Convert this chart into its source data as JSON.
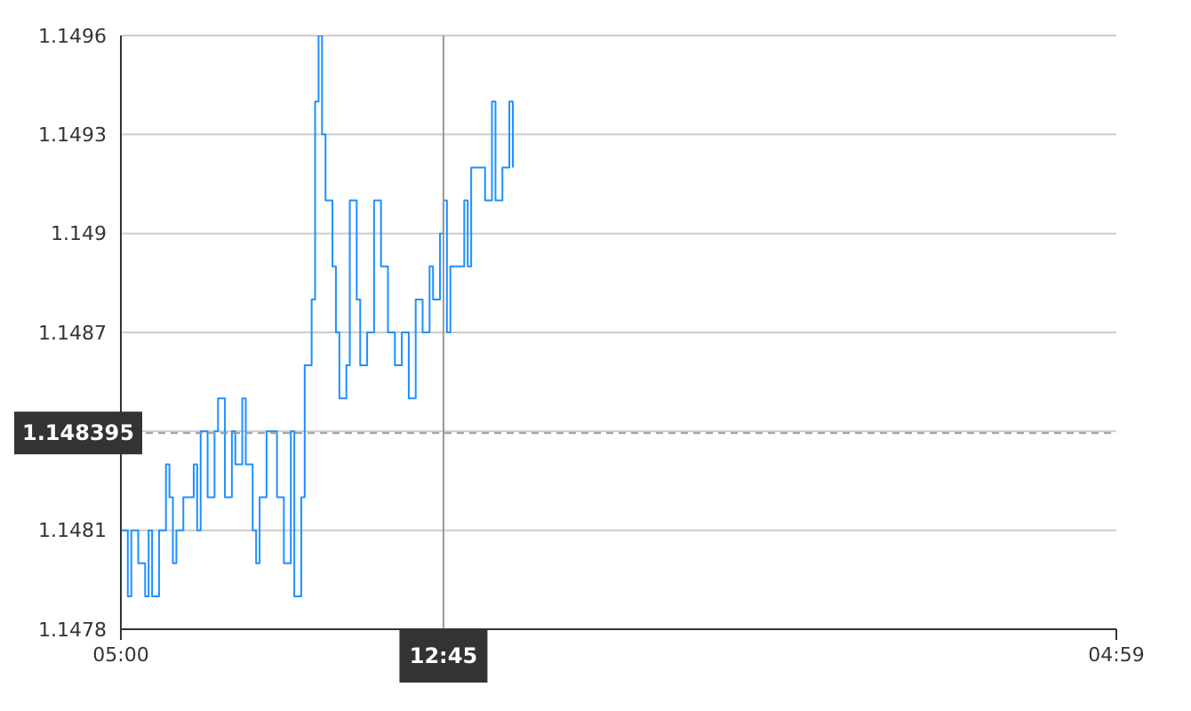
{
  "chart_data": {
    "type": "step",
    "categories": [
      "05:00",
      null,
      null,
      null,
      null,
      null,
      null,
      null,
      null,
      null,
      null,
      null,
      null,
      null,
      null,
      null,
      null,
      null,
      null,
      null,
      null,
      null,
      null,
      null,
      null,
      null,
      null,
      null,
      null,
      null,
      null,
      null,
      null,
      null,
      null,
      null,
      null,
      null,
      null,
      null,
      null,
      null,
      null,
      null,
      null,
      null,
      null,
      null,
      null,
      null,
      null,
      null,
      null,
      null,
      null,
      null,
      null,
      null,
      null,
      null,
      null,
      null,
      null,
      null,
      null,
      null,
      null,
      null,
      null,
      null,
      null,
      null,
      null,
      null,
      null,
      null,
      null,
      null,
      null,
      null,
      null,
      null,
      null,
      null,
      null,
      null,
      null,
      null,
      null,
      null,
      null,
      null,
      null,
      "12:45",
      null,
      null,
      null,
      null,
      null,
      null,
      null,
      null,
      null,
      null,
      null,
      null,
      null,
      null,
      null,
      null,
      null,
      null,
      null,
      null,
      null,
      null,
      null,
      null,
      null,
      null,
      null,
      null,
      null,
      null,
      null,
      null,
      null,
      null,
      null,
      null,
      null,
      null,
      null,
      null,
      null,
      null,
      null,
      null,
      null,
      null,
      null,
      null,
      null,
      null,
      null,
      null,
      null,
      null,
      null,
      null,
      null,
      null,
      null,
      null,
      null,
      null,
      null,
      null,
      null,
      null,
      null,
      null,
      null,
      null,
      null,
      null,
      null,
      null,
      null,
      null,
      null,
      null,
      null,
      null,
      null,
      null,
      null,
      null,
      null,
      null,
      null,
      null,
      null,
      null,
      null,
      null,
      null,
      null,
      null,
      null,
      null,
      null,
      null,
      null,
      null,
      null,
      null,
      null,
      null,
      null,
      null,
      null,
      null,
      null,
      null,
      null,
      null,
      null,
      null,
      null,
      null,
      null,
      null,
      null,
      null,
      null,
      null,
      null,
      null,
      null,
      null,
      null,
      null,
      null,
      null,
      null,
      null,
      null,
      null,
      null,
      null,
      null,
      null,
      null,
      null,
      null,
      null,
      null,
      null,
      null,
      null,
      null,
      null,
      null,
      null,
      null,
      null,
      null,
      null,
      null,
      null,
      null,
      null,
      null,
      null,
      null,
      null,
      null,
      null,
      null,
      null,
      null,
      null,
      null,
      null,
      null,
      null,
      null,
      null,
      null,
      null,
      null,
      null,
      null,
      null,
      null,
      null,
      null,
      null,
      null,
      null,
      null,
      null,
      null,
      null,
      null,
      null,
      "04:59"
    ],
    "series": [
      {
        "color": "#1e90ff",
        "values": [
          1.1481,
          1.1481,
          1.1479,
          1.1481,
          1.1481,
          1.148,
          1.148,
          1.1479,
          1.1481,
          1.1479,
          1.1479,
          1.1481,
          1.1481,
          1.1483,
          1.1482,
          1.148,
          1.1481,
          1.1481,
          1.1482,
          1.1482,
          1.1482,
          1.1483,
          1.1481,
          1.1484,
          1.1484,
          1.1482,
          1.1482,
          1.1484,
          1.1485,
          1.1485,
          1.1482,
          1.1482,
          1.1484,
          1.1483,
          1.1483,
          1.1485,
          1.1483,
          1.1483,
          1.1481,
          1.148,
          1.1482,
          1.1482,
          1.1484,
          1.1484,
          1.1484,
          1.1482,
          1.1482,
          1.148,
          1.148,
          1.1484,
          1.1479,
          1.1479,
          1.1482,
          1.1486,
          1.1486,
          1.1488,
          1.1494,
          1.1496,
          1.1493,
          1.1491,
          1.1491,
          1.1489,
          1.1487,
          1.1485,
          1.1485,
          1.1486,
          1.1491,
          1.1491,
          1.1488,
          1.1486,
          1.1486,
          1.1487,
          1.1487,
          1.1491,
          1.1491,
          1.1489,
          1.1489,
          1.1487,
          1.1487,
          1.1486,
          1.1486,
          1.1487,
          1.1487,
          1.1485,
          1.1485,
          1.1488,
          1.1488,
          1.1487,
          1.1487,
          1.1489,
          1.1488,
          1.1488,
          1.149,
          1.1491,
          1.1487,
          1.1489,
          1.1489,
          1.1489,
          1.1489,
          1.1491,
          1.1489,
          1.1492,
          1.1492,
          1.1492,
          1.1492,
          1.1491,
          1.1491,
          1.1494,
          1.1491,
          1.1491,
          1.1492,
          1.1492,
          1.1494,
          1.1492,
          null,
          null,
          null,
          null,
          null,
          null,
          null,
          null,
          null,
          null,
          null,
          null,
          null,
          null,
          null,
          null,
          null,
          null,
          null,
          null,
          null,
          null,
          null,
          null,
          null,
          null,
          null,
          null,
          null,
          null,
          null,
          null,
          null,
          null,
          null,
          null,
          null,
          null,
          null,
          null,
          null,
          null,
          null,
          null,
          null,
          null,
          null,
          null,
          null,
          null,
          null,
          null,
          null,
          null,
          null,
          null,
          null,
          null,
          null,
          null,
          null,
          null,
          null,
          null,
          null,
          null,
          null,
          null,
          null,
          null,
          null,
          null,
          null,
          null,
          null,
          null,
          null,
          null,
          null,
          null,
          null,
          null,
          null,
          null,
          null,
          null,
          null,
          null,
          null,
          null,
          null,
          null,
          null,
          null,
          null,
          null,
          null,
          null,
          null,
          null,
          null,
          null,
          null,
          null,
          null,
          null,
          null,
          null,
          null,
          null,
          null,
          null,
          null,
          null,
          null,
          null,
          null,
          null,
          null,
          null,
          null,
          null,
          null,
          null,
          null,
          null,
          null,
          null,
          null,
          null,
          null,
          null,
          null,
          null,
          null,
          null,
          null,
          null,
          null,
          null,
          null,
          null,
          null,
          null,
          null,
          null,
          null,
          null,
          null,
          null,
          null,
          null,
          null,
          null,
          null,
          null,
          null,
          null,
          null,
          null,
          null,
          null,
          null,
          null,
          null,
          null,
          null,
          null,
          null,
          null,
          null,
          null,
          null,
          null
        ]
      }
    ],
    "ylim": [
      1.1478,
      1.1496
    ],
    "yticks": [
      1.1478,
      1.1481,
      {
        "value": 1.1484,
        "label": null
      },
      1.1487,
      1.149,
      1.1493,
      1.1496
    ],
    "grid": "y",
    "marker": "none",
    "ref_lines": [
      {
        "axis": "x",
        "value": "12:45",
        "color": "#999999",
        "line_style": "solid"
      },
      {
        "axis": "y",
        "value": 1.148395,
        "label": "1.148395",
        "color": "#999999",
        "line_style": "dashed"
      }
    ]
  }
}
